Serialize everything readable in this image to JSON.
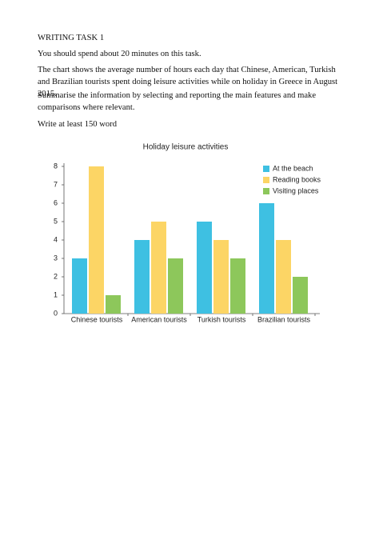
{
  "document": {
    "heading": "WRITING TASK 1",
    "paragraphs": [
      "You should spend about 20 minutes on this task.",
      "The chart shows the average number of hours each day that Chinese, American, Turkish and Brazilian tourists spent doing leisure activities while on holiday in Greece in August 2015.",
      "Summarise the information by selecting and reporting the main features and make comparisons where relevant.",
      "Write at least 150 word"
    ]
  },
  "chart_data": {
    "type": "bar",
    "title": "Holiday leisure activities",
    "categories": [
      "Chinese tourists",
      "American tourists",
      "Turkish tourists",
      "Brazilian tourists"
    ],
    "series": [
      {
        "name": "At the beach",
        "color": "#3ec0e2",
        "values": [
          3,
          4,
          5,
          6
        ]
      },
      {
        "name": "Reading books",
        "color": "#fcd565",
        "values": [
          8,
          5,
          4,
          4
        ]
      },
      {
        "name": "Visiting places",
        "color": "#8dc75b",
        "values": [
          1,
          3,
          3,
          2
        ]
      }
    ],
    "ylim": [
      0,
      8
    ],
    "yticks": [
      0,
      1,
      2,
      3,
      4,
      5,
      6,
      7,
      8
    ],
    "grid": false,
    "legend": "top-right"
  }
}
